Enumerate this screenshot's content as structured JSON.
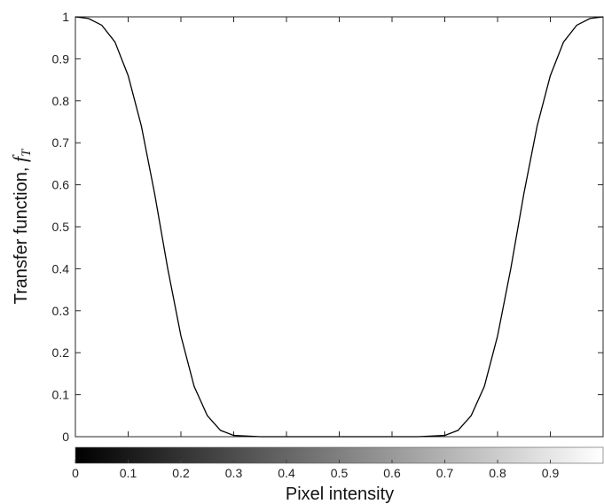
{
  "chart_data": {
    "type": "line",
    "title": "",
    "xlabel": "Pixel intensity",
    "ylabel": "Transfer function, ",
    "ylabel_symbol": "f",
    "ylabel_subscript": "T",
    "xlim": [
      0,
      1
    ],
    "ylim": [
      0,
      1
    ],
    "xticks": [
      0,
      0.1,
      0.2,
      0.3,
      0.4,
      0.5,
      0.6,
      0.7,
      0.8,
      0.9
    ],
    "yticks": [
      0,
      0.1,
      0.2,
      0.3,
      0.4,
      0.5,
      0.6,
      0.7,
      0.8,
      0.9,
      1
    ],
    "grid": false,
    "colorbar": {
      "colormap": "gray",
      "range": [
        0,
        1
      ]
    },
    "series": [
      {
        "color": "#000000",
        "x": [
          0,
          0.025,
          0.05,
          0.075,
          0.1,
          0.125,
          0.15,
          0.175,
          0.2,
          0.225,
          0.25,
          0.275,
          0.3,
          0.35,
          0.4,
          0.45,
          0.5,
          0.55,
          0.6,
          0.65,
          0.7,
          0.725,
          0.75,
          0.775,
          0.8,
          0.825,
          0.85,
          0.875,
          0.9,
          0.925,
          0.95,
          0.975,
          1
        ],
        "y": [
          1,
          0.996,
          0.98,
          0.94,
          0.86,
          0.74,
          0.58,
          0.4,
          0.24,
          0.12,
          0.05,
          0.015,
          0.003,
          0,
          0,
          0,
          0,
          0,
          0,
          0,
          0.003,
          0.015,
          0.05,
          0.12,
          0.24,
          0.4,
          0.58,
          0.74,
          0.86,
          0.94,
          0.98,
          0.996,
          1
        ]
      }
    ]
  }
}
